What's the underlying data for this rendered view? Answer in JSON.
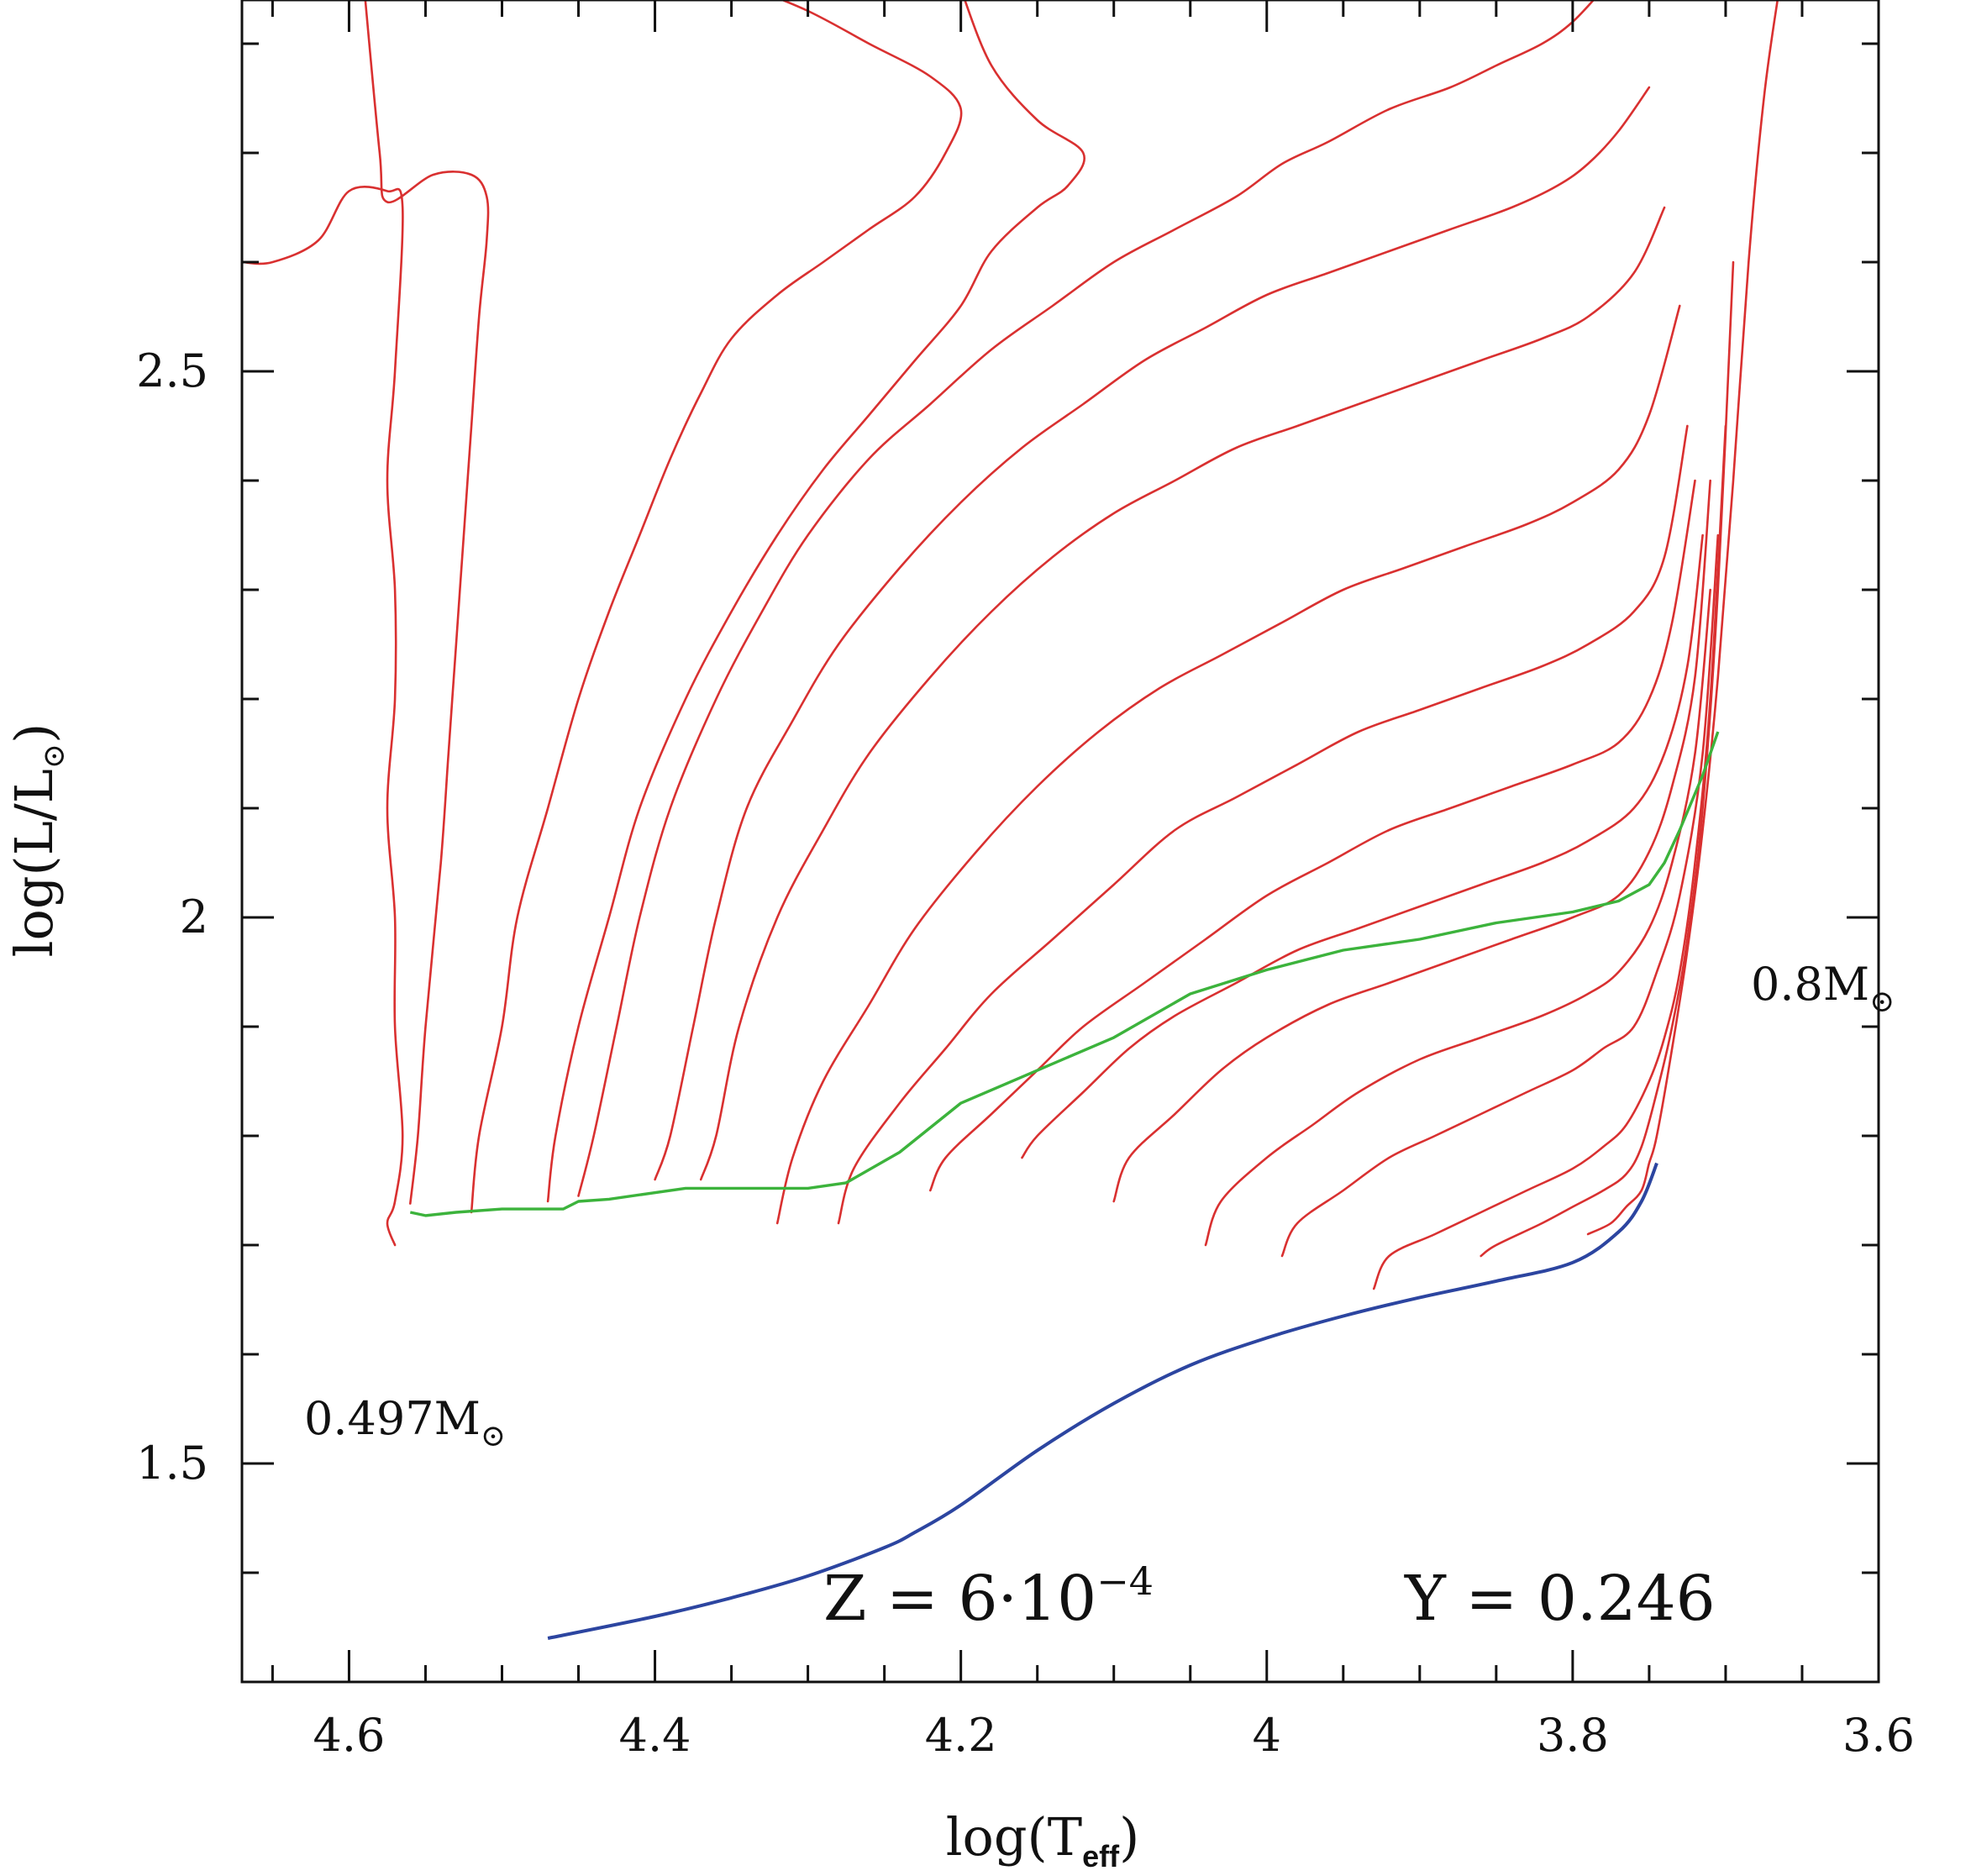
{
  "chart_data": {
    "type": "line",
    "xlabel": "log(T",
    "xlabel_sub": "eff",
    "xlabel_close": ")",
    "ylabel": "log(L/L",
    "ylabel_sub": "⊙",
    "ylabel_close": ")",
    "xlim": [
      4.67,
      3.6
    ],
    "ylim": [
      1.3,
      2.84
    ],
    "x_ticks": [
      4.6,
      4.4,
      4.2,
      4.0,
      3.8,
      3.6
    ],
    "x_tick_labels": [
      "4.6",
      "4.4",
      "4.2",
      "4",
      "3.8",
      "3.6"
    ],
    "x_minor_step": 0.05,
    "y_ticks": [
      1.5,
      2.0,
      2.5
    ],
    "y_tick_labels": [
      "1.5",
      "2",
      "2.5"
    ],
    "y_minor_step": 0.1,
    "grid": false,
    "annotations": {
      "mass_low": "0.497M",
      "mass_low_sub": "⊙",
      "mass_high": "0.8M",
      "mass_high_sub": "⊙",
      "metallicity": "Z = 6·10",
      "metallicity_exp": "−4",
      "helium": "Y = 0.246"
    },
    "colors": {
      "tracks": "#d93030",
      "hb_locus": "#3cb33c",
      "zahb": "#2c45a0",
      "axes": "#111111"
    },
    "zahb": {
      "name": "",
      "x": [
        4.47,
        4.4,
        4.35,
        4.3,
        4.25,
        4.23,
        4.2,
        4.15,
        4.1,
        4.05,
        4.0,
        3.95,
        3.9,
        3.85,
        3.8,
        3.77,
        3.755,
        3.745
      ],
      "y": [
        1.34,
        1.36,
        1.377,
        1.397,
        1.423,
        1.437,
        1.462,
        1.512,
        1.555,
        1.59,
        1.615,
        1.635,
        1.652,
        1.667,
        1.684,
        1.712,
        1.74,
        1.775
      ]
    },
    "hb_locus": {
      "name": "",
      "x": [
        4.56,
        4.55,
        4.53,
        4.5,
        4.46,
        4.45,
        4.43,
        4.38,
        4.35,
        4.3,
        4.275,
        4.24,
        4.2,
        4.15,
        4.1,
        4.05,
        4.0,
        3.95,
        3.9,
        3.85,
        3.8,
        3.77,
        3.75,
        3.74,
        3.73,
        3.715,
        3.705
      ],
      "y": [
        1.73,
        1.727,
        1.73,
        1.733,
        1.733,
        1.74,
        1.742,
        1.752,
        1.752,
        1.752,
        1.757,
        1.785,
        1.83,
        1.86,
        1.89,
        1.93,
        1.952,
        1.97,
        1.98,
        1.995,
        2.005,
        2.015,
        2.03,
        2.05,
        2.08,
        2.13,
        2.17
      ]
    },
    "tracks": [
      {
        "x": [
          4.57,
          4.575,
          4.57,
          4.565,
          4.57,
          4.57,
          4.575,
          4.57,
          4.57,
          4.575,
          4.57,
          4.565,
          4.575,
          4.6,
          4.62,
          4.65,
          4.67
        ],
        "y": [
          1.7,
          1.72,
          1.74,
          1.8,
          1.9,
          2.0,
          2.1,
          2.2,
          2.3,
          2.4,
          2.5,
          2.65,
          2.665,
          2.665,
          2.62,
          2.6,
          2.6
        ]
      },
      {
        "x": [
          4.56,
          4.555,
          4.55,
          4.54,
          4.535,
          4.53,
          4.525,
          4.52,
          4.515,
          4.51,
          4.51,
          4.52,
          4.545,
          4.575,
          4.58,
          4.59
        ],
        "y": [
          1.738,
          1.8,
          1.9,
          2.05,
          2.15,
          2.25,
          2.35,
          2.45,
          2.55,
          2.62,
          2.66,
          2.68,
          2.68,
          2.655,
          2.7,
          2.85
        ]
      },
      {
        "x": [
          4.52,
          4.515,
          4.5,
          4.49,
          4.47,
          4.45,
          4.43,
          4.41,
          4.39,
          4.37,
          4.35,
          4.32,
          4.29,
          4.26,
          4.23,
          4.21,
          4.2,
          4.22,
          4.26,
          4.3,
          4.35,
          4.4
        ],
        "y": [
          1.73,
          1.8,
          1.9,
          2.0,
          2.1,
          2.2,
          2.28,
          2.35,
          2.42,
          2.48,
          2.53,
          2.57,
          2.6,
          2.63,
          2.66,
          2.7,
          2.74,
          2.77,
          2.8,
          2.83,
          2.86,
          2.9
        ]
      },
      {
        "x": [
          4.47,
          4.465,
          4.45,
          4.43,
          4.41,
          4.38,
          4.35,
          4.32,
          4.29,
          4.26,
          4.23,
          4.2,
          4.18,
          4.15,
          4.13,
          4.12,
          4.15,
          4.18,
          4.2
        ],
        "y": [
          1.74,
          1.8,
          1.9,
          2.0,
          2.1,
          2.2,
          2.28,
          2.35,
          2.41,
          2.46,
          2.51,
          2.56,
          2.61,
          2.65,
          2.67,
          2.7,
          2.73,
          2.78,
          2.85
        ]
      },
      {
        "x": [
          4.45,
          4.44,
          4.425,
          4.41,
          4.39,
          4.36,
          4.33,
          4.3,
          4.26,
          4.22,
          4.18,
          4.14,
          4.1,
          4.06,
          4.02,
          3.99,
          3.96,
          3.92,
          3.88,
          3.85,
          3.82,
          3.8,
          3.78
        ],
        "y": [
          1.745,
          1.8,
          1.9,
          2.0,
          2.1,
          2.2,
          2.28,
          2.35,
          2.42,
          2.47,
          2.52,
          2.56,
          2.6,
          2.63,
          2.66,
          2.69,
          2.71,
          2.74,
          2.76,
          2.78,
          2.8,
          2.82,
          2.85
        ]
      },
      {
        "x": [
          4.4,
          4.39,
          4.375,
          4.36,
          4.34,
          4.31,
          4.28,
          4.24,
          4.2,
          4.16,
          4.12,
          4.08,
          4.04,
          4.0,
          3.96,
          3.92,
          3.88,
          3.84,
          3.81,
          3.79,
          3.77,
          3.75
        ],
        "y": [
          1.76,
          1.8,
          1.9,
          2.0,
          2.1,
          2.18,
          2.25,
          2.32,
          2.38,
          2.43,
          2.47,
          2.51,
          2.54,
          2.57,
          2.59,
          2.61,
          2.63,
          2.65,
          2.67,
          2.69,
          2.72,
          2.76
        ]
      },
      {
        "x": [
          4.37,
          4.36,
          4.345,
          4.32,
          4.29,
          4.26,
          4.22,
          4.18,
          4.14,
          4.1,
          4.06,
          4.02,
          3.98,
          3.94,
          3.9,
          3.86,
          3.82,
          3.79,
          3.76,
          3.74
        ],
        "y": [
          1.76,
          1.8,
          1.9,
          2.0,
          2.08,
          2.15,
          2.22,
          2.28,
          2.33,
          2.37,
          2.4,
          2.43,
          2.45,
          2.47,
          2.49,
          2.51,
          2.53,
          2.55,
          2.59,
          2.65
        ]
      },
      {
        "x": [
          4.32,
          4.31,
          4.29,
          4.26,
          4.23,
          4.19,
          4.15,
          4.11,
          4.07,
          4.03,
          3.99,
          3.95,
          3.91,
          3.87,
          3.83,
          3.8,
          3.77,
          3.75,
          3.73
        ],
        "y": [
          1.72,
          1.78,
          1.85,
          1.92,
          1.99,
          2.06,
          2.12,
          2.17,
          2.21,
          2.24,
          2.27,
          2.3,
          2.32,
          2.34,
          2.36,
          2.38,
          2.41,
          2.46,
          2.56
        ]
      },
      {
        "x": [
          4.28,
          4.27,
          4.24,
          4.21,
          4.18,
          4.14,
          4.1,
          4.06,
          4.02,
          3.98,
          3.94,
          3.9,
          3.86,
          3.82,
          3.79,
          3.76,
          3.74,
          3.725
        ],
        "y": [
          1.72,
          1.77,
          1.83,
          1.88,
          1.93,
          1.98,
          2.03,
          2.08,
          2.11,
          2.14,
          2.17,
          2.19,
          2.21,
          2.23,
          2.25,
          2.28,
          2.33,
          2.45
        ]
      },
      {
        "x": [
          4.22,
          4.21,
          4.18,
          4.15,
          4.12,
          4.08,
          4.04,
          4.0,
          3.96,
          3.92,
          3.88,
          3.84,
          3.8,
          3.77,
          3.75,
          3.735,
          3.72
        ],
        "y": [
          1.75,
          1.78,
          1.82,
          1.86,
          1.9,
          1.94,
          1.98,
          2.02,
          2.05,
          2.08,
          2.1,
          2.12,
          2.14,
          2.16,
          2.2,
          2.27,
          2.4
        ]
      },
      {
        "x": [
          4.16,
          4.15,
          4.12,
          4.09,
          4.06,
          4.02,
          3.98,
          3.94,
          3.9,
          3.86,
          3.82,
          3.79,
          3.76,
          3.74,
          3.725,
          3.715
        ],
        "y": [
          1.78,
          1.8,
          1.84,
          1.88,
          1.91,
          1.94,
          1.97,
          1.99,
          2.01,
          2.03,
          2.05,
          2.07,
          2.1,
          2.15,
          2.23,
          2.35
        ]
      },
      {
        "x": [
          4.1,
          4.09,
          4.06,
          4.03,
          4.0,
          3.96,
          3.92,
          3.88,
          3.84,
          3.8,
          3.77,
          3.75,
          3.735,
          3.72,
          3.71
        ],
        "y": [
          1.74,
          1.78,
          1.82,
          1.86,
          1.89,
          1.92,
          1.94,
          1.96,
          1.98,
          2.0,
          2.02,
          2.06,
          2.12,
          2.22,
          2.4
        ]
      },
      {
        "x": [
          4.04,
          4.03,
          4.0,
          3.97,
          3.94,
          3.9,
          3.86,
          3.82,
          3.79,
          3.77,
          3.75,
          3.735,
          3.72,
          3.71
        ],
        "y": [
          1.7,
          1.74,
          1.78,
          1.81,
          1.84,
          1.87,
          1.89,
          1.91,
          1.93,
          1.95,
          1.99,
          2.05,
          2.15,
          2.3
        ]
      },
      {
        "x": [
          3.99,
          3.98,
          3.95,
          3.92,
          3.89,
          3.86,
          3.83,
          3.8,
          3.78,
          3.76,
          3.745,
          3.73,
          3.715,
          3.705
        ],
        "y": [
          1.69,
          1.72,
          1.75,
          1.78,
          1.8,
          1.82,
          1.84,
          1.86,
          1.88,
          1.9,
          1.95,
          2.02,
          2.15,
          2.35
        ]
      },
      {
        "x": [
          3.93,
          3.92,
          3.89,
          3.86,
          3.83,
          3.8,
          3.78,
          3.765,
          3.75,
          3.74,
          3.73,
          3.72,
          3.71,
          3.7
        ],
        "y": [
          1.66,
          1.69,
          1.71,
          1.73,
          1.75,
          1.77,
          1.79,
          1.81,
          1.85,
          1.89,
          1.95,
          2.05,
          2.2,
          2.45
        ]
      },
      {
        "x": [
          3.86,
          3.85,
          3.82,
          3.8,
          3.78,
          3.765,
          3.755,
          3.745,
          3.735,
          3.725,
          3.715,
          3.705,
          3.695
        ],
        "y": [
          1.69,
          1.7,
          1.72,
          1.735,
          1.75,
          1.765,
          1.79,
          1.84,
          1.9,
          1.98,
          2.1,
          2.3,
          2.6
        ]
      },
      {
        "x": [
          3.79,
          3.775,
          3.765,
          3.755,
          3.75,
          3.745,
          3.735,
          3.725,
          3.715,
          3.705,
          3.695,
          3.685,
          3.675,
          3.665
        ],
        "y": [
          1.71,
          1.72,
          1.735,
          1.75,
          1.775,
          1.8,
          1.88,
          1.97,
          2.08,
          2.22,
          2.4,
          2.6,
          2.75,
          2.85
        ]
      }
    ]
  }
}
